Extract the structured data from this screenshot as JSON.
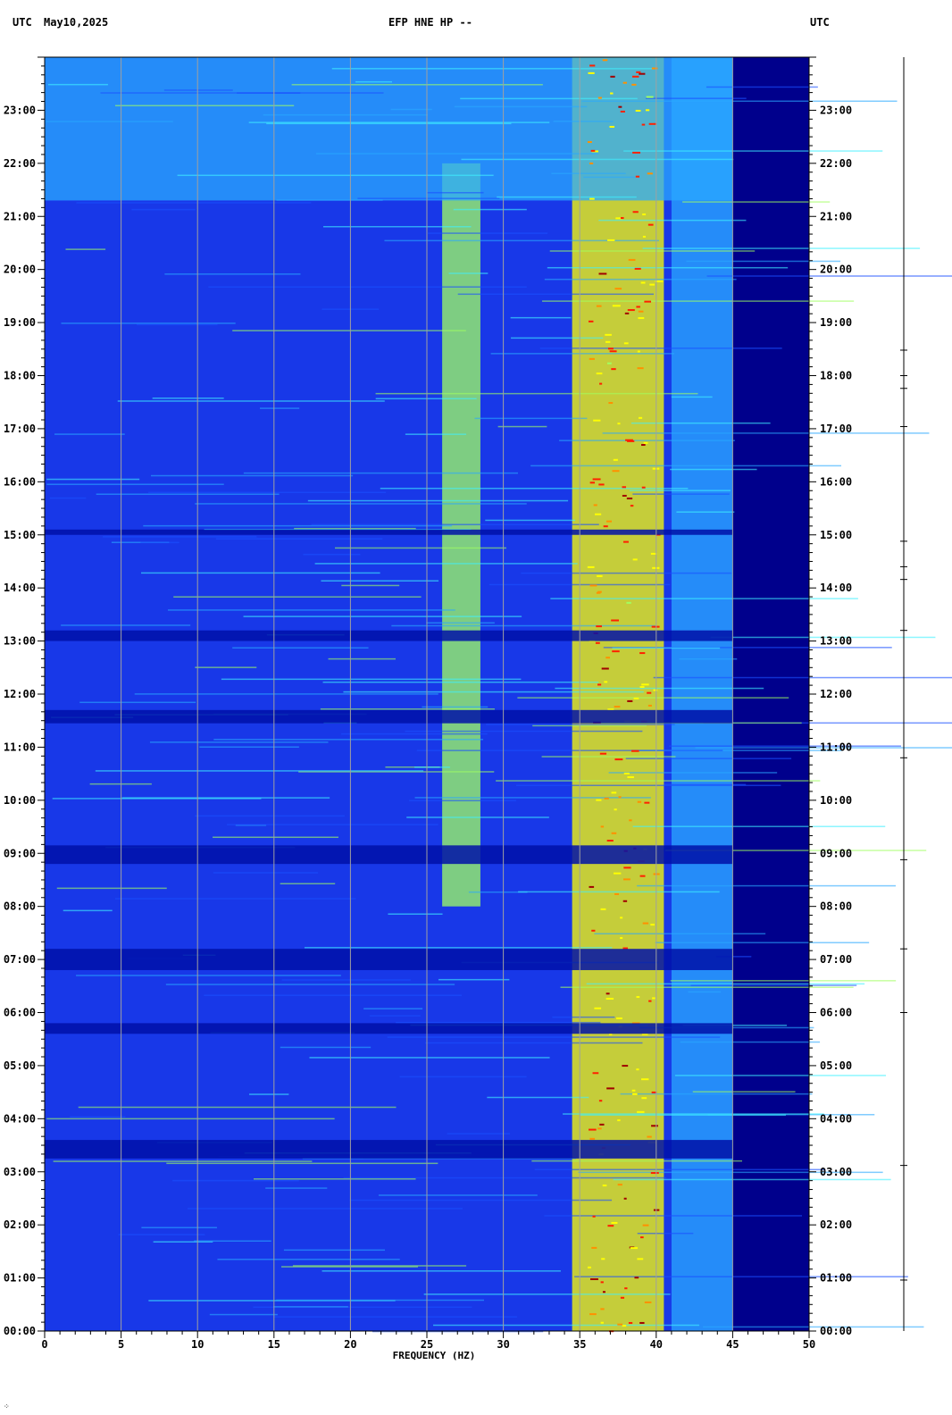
{
  "header": {
    "left_tz": "UTC",
    "date": "May10,2025",
    "station": "EFP HNE HP --",
    "right_tz": "UTC"
  },
  "chart_data": {
    "type": "heatmap",
    "title": "EFP HNE HP --",
    "xlabel": "FREQUENCY (HZ)",
    "ylabel": "",
    "xlim": [
      0,
      50
    ],
    "ylim_hours": [
      0,
      24
    ],
    "x_ticks": [
      "0",
      "5",
      "10",
      "15",
      "20",
      "25",
      "30",
      "35",
      "40",
      "45",
      "50"
    ],
    "y_ticks_left": [
      "00:00",
      "01:00",
      "02:00",
      "03:00",
      "04:00",
      "05:00",
      "06:00",
      "07:00",
      "08:00",
      "09:00",
      "10:00",
      "11:00",
      "12:00",
      "13:00",
      "14:00",
      "15:00",
      "16:00",
      "17:00",
      "18:00",
      "19:00",
      "20:00",
      "21:00",
      "22:00",
      "23:00"
    ],
    "y_ticks_right": [
      "00:00",
      "01:00",
      "02:00",
      "03:00",
      "04:00",
      "05:00",
      "06:00",
      "07:00",
      "08:00",
      "09:00",
      "10:00",
      "11:00",
      "12:00",
      "13:00",
      "14:00",
      "15:00",
      "16:00",
      "17:00",
      "18:00",
      "19:00",
      "20:00",
      "21:00",
      "22:00",
      "23:00"
    ],
    "grid": true,
    "colormap": [
      "#00007a",
      "#0010c8",
      "#1a50ff",
      "#29a8ff",
      "#40f0ff",
      "#a0ff60",
      "#ffff00",
      "#ff9000",
      "#ff2000",
      "#a00000"
    ],
    "energy_bands": [
      {
        "f_start": 34.5,
        "f_end": 40.5,
        "t_start": 0,
        "t_end": 24,
        "level": 0.7
      },
      {
        "f_start": 26,
        "f_end": 28.5,
        "t_start": 8,
        "t_end": 22,
        "level": 0.55
      },
      {
        "f_start": 41,
        "f_end": 45,
        "t_start": 0,
        "t_end": 24,
        "level": 0.35
      },
      {
        "f_start": 0,
        "f_end": 45,
        "t_start": 21.3,
        "t_end": 24,
        "level": 0.33
      }
    ],
    "quiet_periods_hours": [
      [
        3.25,
        3.6
      ],
      [
        5.6,
        5.8
      ],
      [
        6.8,
        7.2
      ],
      [
        8.8,
        9.15
      ],
      [
        11.45,
        11.7
      ],
      [
        13.0,
        13.2
      ],
      [
        15.0,
        15.1
      ]
    ],
    "noise_floor_above_hz": 45
  }
}
